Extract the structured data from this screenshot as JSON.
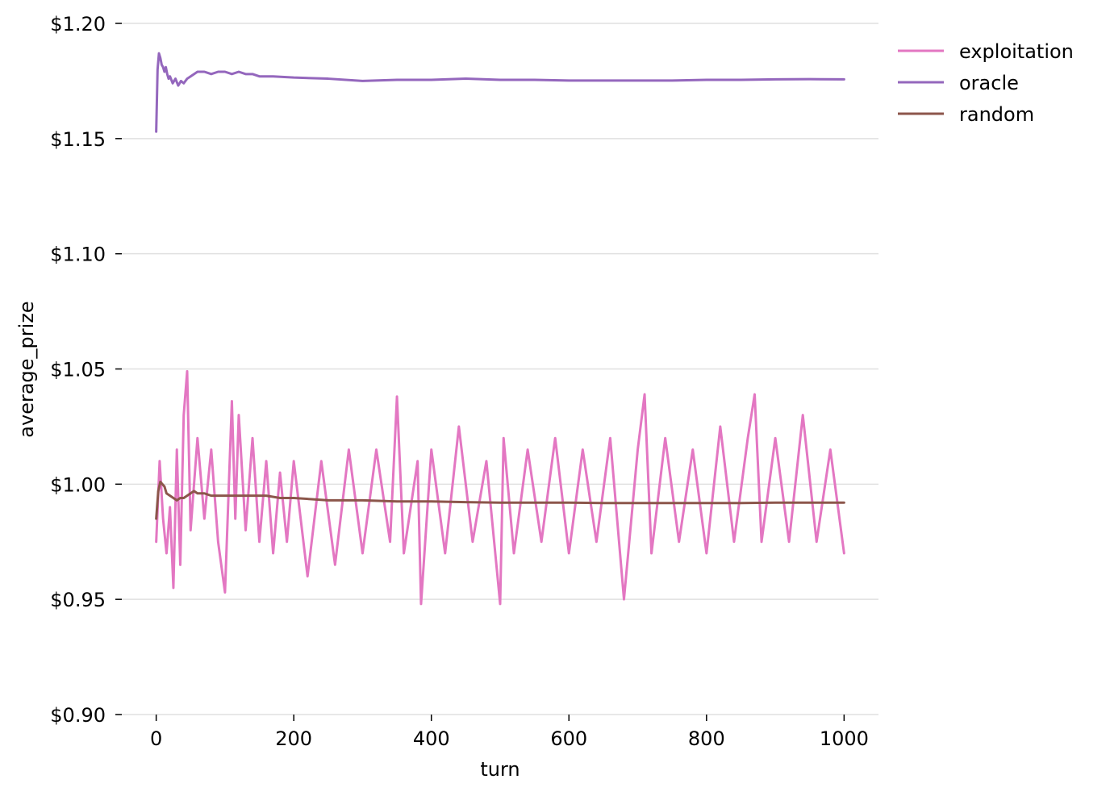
{
  "chart_data": {
    "type": "line",
    "title": "",
    "xlabel": "turn",
    "ylabel": "average_prize",
    "xlim": [
      -50,
      1050
    ],
    "ylim": [
      0.9,
      1.2
    ],
    "x_ticks": [
      0,
      200,
      400,
      600,
      800,
      1000
    ],
    "x_tick_labels": [
      "0",
      "200",
      "400",
      "600",
      "800",
      "1000"
    ],
    "y_ticks": [
      0.9,
      0.95,
      1.0,
      1.05,
      1.1,
      1.15,
      1.2
    ],
    "y_tick_labels": [
      "$0.90",
      "$0.95",
      "$1.00",
      "$1.05",
      "$1.10",
      "$1.15",
      "$1.20"
    ],
    "grid": "horizontal",
    "legend_position": "outside-top-right",
    "series": [
      {
        "name": "exploitation",
        "color": "#e377c2",
        "x": [
          0,
          5,
          10,
          15,
          20,
          25,
          30,
          35,
          40,
          45,
          50,
          60,
          70,
          80,
          90,
          100,
          110,
          115,
          120,
          130,
          140,
          150,
          160,
          170,
          180,
          190,
          200,
          220,
          240,
          260,
          280,
          300,
          320,
          340,
          350,
          360,
          380,
          385,
          400,
          420,
          440,
          460,
          480,
          500,
          505,
          520,
          540,
          560,
          580,
          600,
          620,
          640,
          660,
          680,
          700,
          710,
          720,
          740,
          760,
          780,
          800,
          820,
          840,
          860,
          870,
          880,
          900,
          920,
          940,
          960,
          980,
          1000
        ],
        "y": [
          0.975,
          1.01,
          0.985,
          0.97,
          0.99,
          0.955,
          1.015,
          0.965,
          1.03,
          1.049,
          0.98,
          1.02,
          0.985,
          1.015,
          0.975,
          0.953,
          1.036,
          0.985,
          1.03,
          0.98,
          1.02,
          0.975,
          1.01,
          0.97,
          1.005,
          0.975,
          1.01,
          0.96,
          1.01,
          0.965,
          1.015,
          0.97,
          1.015,
          0.975,
          1.038,
          0.97,
          1.01,
          0.948,
          1.015,
          0.97,
          1.025,
          0.975,
          1.01,
          0.948,
          1.02,
          0.97,
          1.015,
          0.975,
          1.02,
          0.97,
          1.015,
          0.975,
          1.02,
          0.95,
          1.015,
          1.039,
          0.97,
          1.02,
          0.975,
          1.015,
          0.97,
          1.025,
          0.975,
          1.02,
          1.039,
          0.975,
          1.02,
          0.975,
          1.03,
          0.975,
          1.015,
          0.97
        ]
      },
      {
        "name": "oracle",
        "color": "#9467bd",
        "x": [
          0,
          2,
          4,
          6,
          8,
          10,
          12,
          14,
          16,
          18,
          20,
          24,
          28,
          32,
          36,
          40,
          45,
          50,
          55,
          60,
          70,
          80,
          90,
          100,
          110,
          120,
          130,
          140,
          150,
          170,
          200,
          250,
          300,
          350,
          400,
          450,
          500,
          550,
          600,
          650,
          700,
          750,
          800,
          850,
          900,
          950,
          1000
        ],
        "y": [
          1.153,
          1.18,
          1.187,
          1.185,
          1.182,
          1.181,
          1.179,
          1.181,
          1.178,
          1.176,
          1.177,
          1.174,
          1.176,
          1.173,
          1.175,
          1.174,
          1.176,
          1.177,
          1.178,
          1.179,
          1.179,
          1.178,
          1.179,
          1.179,
          1.178,
          1.179,
          1.178,
          1.178,
          1.177,
          1.177,
          1.1765,
          1.176,
          1.175,
          1.1755,
          1.1755,
          1.176,
          1.1755,
          1.1755,
          1.1752,
          1.1752,
          1.1752,
          1.1752,
          1.1755,
          1.1755,
          1.1757,
          1.1758,
          1.1757
        ]
      },
      {
        "name": "random",
        "color": "#8c564b",
        "x": [
          0,
          3,
          6,
          9,
          12,
          15,
          20,
          25,
          30,
          35,
          40,
          45,
          50,
          55,
          60,
          70,
          80,
          90,
          100,
          120,
          140,
          160,
          180,
          200,
          250,
          300,
          350,
          400,
          450,
          500,
          550,
          600,
          650,
          700,
          750,
          800,
          850,
          900,
          950,
          1000
        ],
        "y": [
          0.985,
          0.997,
          1.001,
          1.0,
          0.999,
          0.996,
          0.995,
          0.994,
          0.993,
          0.994,
          0.994,
          0.995,
          0.996,
          0.997,
          0.996,
          0.996,
          0.995,
          0.995,
          0.995,
          0.995,
          0.995,
          0.995,
          0.994,
          0.994,
          0.993,
          0.993,
          0.9925,
          0.9925,
          0.9922,
          0.992,
          0.992,
          0.992,
          0.9918,
          0.9918,
          0.9918,
          0.9918,
          0.9918,
          0.992,
          0.992,
          0.992
        ]
      }
    ]
  }
}
